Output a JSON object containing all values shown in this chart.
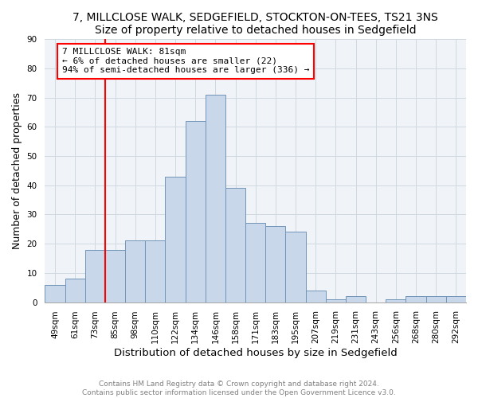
{
  "title1": "7, MILLCLOSE WALK, SEDGEFIELD, STOCKTON-ON-TEES, TS21 3NS",
  "title2": "Size of property relative to detached houses in Sedgefield",
  "xlabel": "Distribution of detached houses by size in Sedgefield",
  "ylabel": "Number of detached properties",
  "categories": [
    "49sqm",
    "61sqm",
    "73sqm",
    "85sqm",
    "98sqm",
    "110sqm",
    "122sqm",
    "134sqm",
    "146sqm",
    "158sqm",
    "171sqm",
    "183sqm",
    "195sqm",
    "207sqm",
    "219sqm",
    "231sqm",
    "243sqm",
    "256sqm",
    "268sqm",
    "280sqm",
    "292sqm"
  ],
  "values": [
    6,
    8,
    18,
    18,
    21,
    21,
    43,
    62,
    71,
    39,
    27,
    26,
    24,
    4,
    1,
    2,
    0,
    1,
    2,
    2,
    2
  ],
  "bar_color": "#c8d8ea",
  "bar_edge_color": "#7094b8",
  "annotation_text": "7 MILLCLOSE WALK: 81sqm\n← 6% of detached houses are smaller (22)\n94% of semi-detached houses are larger (336) →",
  "annotation_box_color": "white",
  "annotation_box_edge_color": "red",
  "vline_x_index": 2.5,
  "vline_color": "red",
  "ylim": [
    0,
    90
  ],
  "yticks": [
    0,
    10,
    20,
    30,
    40,
    50,
    60,
    70,
    80,
    90
  ],
  "footer1": "Contains HM Land Registry data © Crown copyright and database right 2024.",
  "footer2": "Contains public sector information licensed under the Open Government Licence v3.0.",
  "title_fontsize": 10,
  "axis_label_fontsize": 9,
  "tick_fontsize": 7.5,
  "annotation_fontsize": 8,
  "footer_fontsize": 6.5
}
